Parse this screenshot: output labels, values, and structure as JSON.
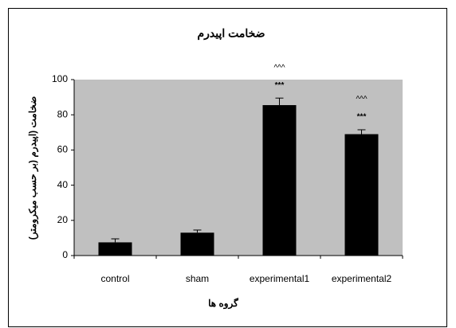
{
  "chart_data": {
    "type": "bar",
    "title": "ضخامت اپیدرم",
    "x_label": "گروه ها",
    "y_label": "ضخامت (اپیدرم (بر حسب میکرومتر)",
    "categories": [
      "control",
      "sham",
      "experimental1",
      "experimental2"
    ],
    "values": [
      7.5,
      13,
      85.5,
      69
    ],
    "errors": [
      2,
      1.5,
      4,
      2.5
    ],
    "stars": [
      null,
      null,
      "***",
      "***"
    ],
    "carets": [
      null,
      null,
      "^^^",
      "^^^"
    ],
    "color": "#000000",
    "background": "#c0c0c0",
    "ylim": [
      0,
      100
    ],
    "yticks": [
      0,
      20,
      40,
      60,
      80,
      100
    ],
    "grid": false
  }
}
